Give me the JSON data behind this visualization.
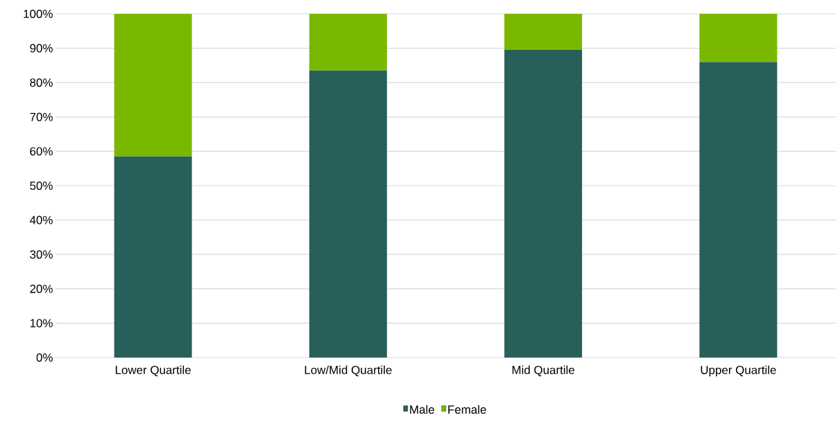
{
  "chart_data": {
    "type": "bar",
    "stacked": true,
    "categories": [
      "Lower Quartile",
      "Low/Mid Quartile",
      "Mid Quartile",
      "Upper Quartile"
    ],
    "series": [
      {
        "name": "Male",
        "color": "#27605a",
        "values": [
          58.5,
          83.5,
          89.5,
          86
        ]
      },
      {
        "name": "Female",
        "color": "#7ab800",
        "values": [
          41.5,
          16.5,
          10.5,
          14
        ]
      }
    ],
    "ylim": [
      0,
      100
    ],
    "yticks": [
      {
        "value": 0,
        "label": "0%"
      },
      {
        "value": 10,
        "label": "10%"
      },
      {
        "value": 20,
        "label": "20%"
      },
      {
        "value": 30,
        "label": "30%"
      },
      {
        "value": 40,
        "label": "40%"
      },
      {
        "value": 50,
        "label": "50%"
      },
      {
        "value": 60,
        "label": "60%"
      },
      {
        "value": 70,
        "label": "70%"
      },
      {
        "value": 80,
        "label": "80%"
      },
      {
        "value": 90,
        "label": "90%"
      },
      {
        "value": 100,
        "label": "100%"
      }
    ],
    "grid": "y",
    "legend": "bottom"
  }
}
